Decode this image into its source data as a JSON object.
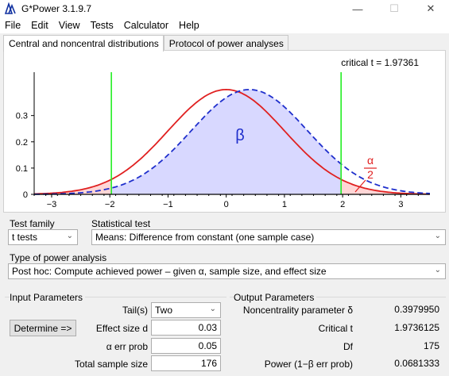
{
  "window": {
    "title": "G*Power 3.1.9.7",
    "icon": "gpower-app-icon",
    "minimize": "—",
    "maximize": "☐",
    "close": "✕"
  },
  "menu": [
    "File",
    "Edit",
    "View",
    "Tests",
    "Calculator",
    "Help"
  ],
  "tabs": [
    "Central and noncentral distributions",
    "Protocol of power analyses"
  ],
  "plot": {
    "critical_label": "critical t = 1.97361",
    "beta_label": "β",
    "alpha_num": "α",
    "alpha_den": "2",
    "colors": {
      "central": "#e02020",
      "noncentral": "#1f2fcc",
      "critical": "#22ee22",
      "beta_fill": "#d8d8ff",
      "alpha_fill": "#ffd6d6"
    }
  },
  "chart_data": {
    "type": "line",
    "critical_t": 1.97361,
    "noncentrality": 0.397995,
    "df": 175,
    "xlim": [
      -3.3,
      3.5
    ],
    "ylim": [
      0,
      0.4
    ],
    "x_ticks": [
      "−3",
      "−2",
      "−1",
      "0",
      "1",
      "2",
      "3"
    ],
    "y_ticks": [
      "0",
      "0.1",
      "0.2",
      "0.3"
    ],
    "series": [
      {
        "style": "solid",
        "distribution": "central t",
        "shift": 0
      },
      {
        "style": "dashed",
        "distribution": "noncentral t",
        "shift": 0.397995
      }
    ]
  },
  "test_family": {
    "label": "Test family",
    "value": "t tests"
  },
  "statistical_test": {
    "label": "Statistical test",
    "value": "Means: Difference from constant (one sample case)"
  },
  "power_analysis": {
    "label": "Type of power analysis",
    "value": "Post hoc: Compute achieved power – given α, sample size, and effect size"
  },
  "input": {
    "title": "Input Parameters",
    "tails_label": "Tail(s)",
    "tails_value": "Two",
    "determine_label": "Determine =>",
    "effect_label": "Effect size d",
    "effect_value": "0.03",
    "alpha_label": "α err prob",
    "alpha_value": "0.05",
    "n_label": "Total sample size",
    "n_value": "176"
  },
  "output": {
    "title": "Output Parameters",
    "nc_label": "Noncentrality parameter δ",
    "nc_value": "0.3979950",
    "crit_label": "Critical t",
    "crit_value": "1.9736125",
    "df_label": "Df",
    "df_value": "175",
    "power_label": "Power (1−β err prob)",
    "power_value": "0.0681333"
  }
}
